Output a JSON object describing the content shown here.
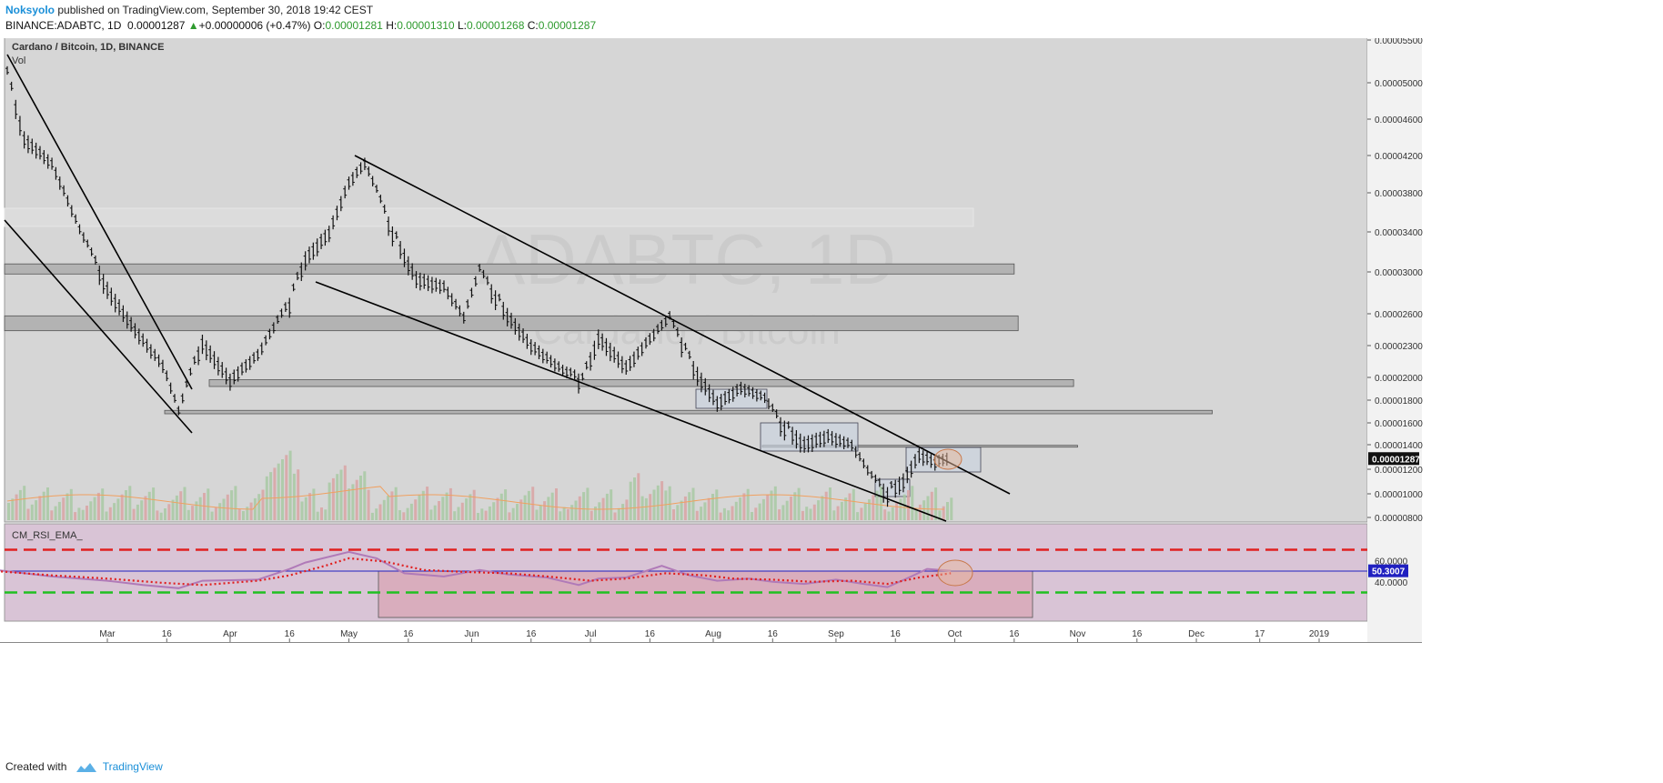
{
  "header": {
    "author": "Noksyolo",
    "published": "published on TradingView.com, September 30, 2018 19:42 CEST",
    "symbol": "BINANCE:ADABTC, 1D",
    "close": "0.00001287",
    "arrow": "▲",
    "change": "+0.00000006 (+0.47%)",
    "o_label": "O:",
    "o": "0.00001281",
    "h_label": "H:",
    "h": "0.00001310",
    "l_label": "L:",
    "l": "0.00001268",
    "c_label": "C:",
    "c": "0.00001287"
  },
  "footer": {
    "created_with": "Created with",
    "brand": "TradingView"
  },
  "chart_data": {
    "type": "candlestick",
    "title": "Cardano / Bitcoin, 1D, BINANCE",
    "volume_label": "Vol",
    "watermark_symbol": "ADABTC, 1D",
    "watermark_name": "Cardano / Bitcoin",
    "price_axis_labels": [
      "0.00005500",
      "0.00005000",
      "0.00004600",
      "0.00004200",
      "0.00003800",
      "0.00003400",
      "0.00003000",
      "0.00002600",
      "0.00002300",
      "0.00002000",
      "0.00001800",
      "0.00001600",
      "0.00001400",
      "0.00001200",
      "0.00001000",
      "0.00000800"
    ],
    "price_ticks": [
      5.5e-05,
      5e-05,
      4.6e-05,
      4.2e-05,
      3.8e-05,
      3.4e-05,
      3e-05,
      2.6e-05,
      2.3e-05,
      2e-05,
      1.8e-05,
      1.6e-05,
      1.4e-05,
      1.2e-05,
      1e-05,
      8e-06
    ],
    "current_price_label": "0.00001287",
    "current_price": 1.287e-05,
    "x_axis_labels": [
      "Mar",
      "16",
      "Apr",
      "16",
      "May",
      "16",
      "Jun",
      "16",
      "Jul",
      "16",
      "Aug",
      "16",
      "Sep",
      "16",
      "Oct",
      "16",
      "Nov",
      "16",
      "Dec",
      "17",
      "2019"
    ],
    "x_axis_dates": [
      "2018-03-01",
      "2018-03-16",
      "2018-04-01",
      "2018-04-16",
      "2018-05-01",
      "2018-05-16",
      "2018-06-01",
      "2018-06-16",
      "2018-07-01",
      "2018-07-16",
      "2018-08-01",
      "2018-08-16",
      "2018-09-01",
      "2018-09-16",
      "2018-10-01",
      "2018-10-16",
      "2018-11-01",
      "2018-11-16",
      "2018-12-01",
      "2018-12-17",
      "2019-01-01"
    ],
    "close_series": [
      [
        "2018-02-01",
        5.1e-05
      ],
      [
        "2018-02-08",
        4.4e-05
      ],
      [
        "2018-02-15",
        4.1e-05
      ],
      [
        "2018-02-22",
        3.4e-05
      ],
      [
        "2018-03-01",
        2.85e-05
      ],
      [
        "2018-03-08",
        2.45e-05
      ],
      [
        "2018-03-15",
        2.1e-05
      ],
      [
        "2018-03-19",
        1.68e-05
      ],
      [
        "2018-03-25",
        2.35e-05
      ],
      [
        "2018-04-01",
        1.98e-05
      ],
      [
        "2018-04-08",
        2.2e-05
      ],
      [
        "2018-04-16",
        2.7e-05
      ],
      [
        "2018-04-20",
        3.15e-05
      ],
      [
        "2018-04-26",
        3.4e-05
      ],
      [
        "2018-05-01",
        3.9e-05
      ],
      [
        "2018-05-05",
        4.1e-05
      ],
      [
        "2018-05-12",
        3.4e-05
      ],
      [
        "2018-05-18",
        2.95e-05
      ],
      [
        "2018-05-25",
        2.85e-05
      ],
      [
        "2018-05-30",
        2.55e-05
      ],
      [
        "2018-06-03",
        3e-05
      ],
      [
        "2018-06-10",
        2.6e-05
      ],
      [
        "2018-06-16",
        2.3e-05
      ],
      [
        "2018-06-24",
        2.05e-05
      ],
      [
        "2018-06-29",
        1.97e-05
      ],
      [
        "2018-07-03",
        2.4e-05
      ],
      [
        "2018-07-10",
        2.1e-05
      ],
      [
        "2018-07-16",
        2.35e-05
      ],
      [
        "2018-07-21",
        2.55e-05
      ],
      [
        "2018-07-27",
        2.1e-05
      ],
      [
        "2018-08-02",
        1.78e-05
      ],
      [
        "2018-08-08",
        1.9e-05
      ],
      [
        "2018-08-14",
        1.8e-05
      ],
      [
        "2018-08-18",
        1.6e-05
      ],
      [
        "2018-08-24",
        1.42e-05
      ],
      [
        "2018-08-30",
        1.48e-05
      ],
      [
        "2018-09-05",
        1.38e-05
      ],
      [
        "2018-09-10",
        1.12e-05
      ],
      [
        "2018-09-14",
        1.01e-05
      ],
      [
        "2018-09-18",
        1.12e-05
      ],
      [
        "2018-09-22",
        1.32e-05
      ],
      [
        "2018-09-26",
        1.25e-05
      ],
      [
        "2018-09-30",
        1.287e-05
      ]
    ],
    "horizontal_zones": [
      {
        "y1": 2.98e-05,
        "y2": 3.08e-05,
        "to": "2018-10-16"
      },
      {
        "y1": 2.44e-05,
        "y2": 2.58e-05,
        "to": "2018-10-17"
      },
      {
        "y1": 1.92e-05,
        "y2": 1.98e-05,
        "to": "2018-10-31"
      },
      {
        "y1": 1.68e-05,
        "y2": 1.71e-05,
        "to": "2018-12-05"
      },
      {
        "y1": 1.38e-05,
        "y2": 1.395e-05,
        "to": "2018-11-01"
      }
    ],
    "rsi_panel": {
      "label": "CM_RSI_EMA_",
      "axis_labels": [
        "60.0000",
        "40.0000"
      ],
      "value_label": "50.3007",
      "value": 50.3007,
      "upper_band": 70,
      "lower_band": 30,
      "midline": 50,
      "rsi_series": [
        [
          "2018-02-01",
          51
        ],
        [
          "2018-02-15",
          45
        ],
        [
          "2018-03-01",
          41
        ],
        [
          "2018-03-10",
          37
        ],
        [
          "2018-03-19",
          34
        ],
        [
          "2018-03-25",
          41
        ],
        [
          "2018-04-08",
          42
        ],
        [
          "2018-04-16",
          52
        ],
        [
          "2018-04-20",
          58
        ],
        [
          "2018-05-01",
          68
        ],
        [
          "2018-05-08",
          62
        ],
        [
          "2018-05-15",
          48
        ],
        [
          "2018-05-25",
          45
        ],
        [
          "2018-06-03",
          51
        ],
        [
          "2018-06-10",
          47
        ],
        [
          "2018-06-20",
          44
        ],
        [
          "2018-06-28",
          37
        ],
        [
          "2018-07-03",
          43
        ],
        [
          "2018-07-10",
          44
        ],
        [
          "2018-07-19",
          55
        ],
        [
          "2018-07-26",
          46
        ],
        [
          "2018-08-02",
          41
        ],
        [
          "2018-08-10",
          43
        ],
        [
          "2018-08-16",
          40
        ],
        [
          "2018-08-24",
          38
        ],
        [
          "2018-09-01",
          42
        ],
        [
          "2018-09-08",
          38
        ],
        [
          "2018-09-14",
          35
        ],
        [
          "2018-09-20",
          45
        ],
        [
          "2018-09-24",
          52
        ],
        [
          "2018-09-30",
          50.3
        ]
      ],
      "ema_series": [
        [
          "2018-02-01",
          50
        ],
        [
          "2018-02-15",
          46
        ],
        [
          "2018-03-01",
          43
        ],
        [
          "2018-03-15",
          39
        ],
        [
          "2018-03-25",
          37
        ],
        [
          "2018-04-08",
          41
        ],
        [
          "2018-04-16",
          46
        ],
        [
          "2018-04-25",
          55
        ],
        [
          "2018-05-01",
          62
        ],
        [
          "2018-05-10",
          59
        ],
        [
          "2018-05-20",
          51
        ],
        [
          "2018-06-01",
          49
        ],
        [
          "2018-06-10",
          48
        ],
        [
          "2018-06-20",
          45
        ],
        [
          "2018-07-01",
          41
        ],
        [
          "2018-07-10",
          43
        ],
        [
          "2018-07-20",
          48
        ],
        [
          "2018-07-30",
          46
        ],
        [
          "2018-08-06",
          43
        ],
        [
          "2018-08-16",
          42
        ],
        [
          "2018-08-26",
          40
        ],
        [
          "2018-09-05",
          41
        ],
        [
          "2018-09-14",
          38
        ],
        [
          "2018-09-22",
          44
        ],
        [
          "2018-09-30",
          48
        ]
      ]
    }
  }
}
